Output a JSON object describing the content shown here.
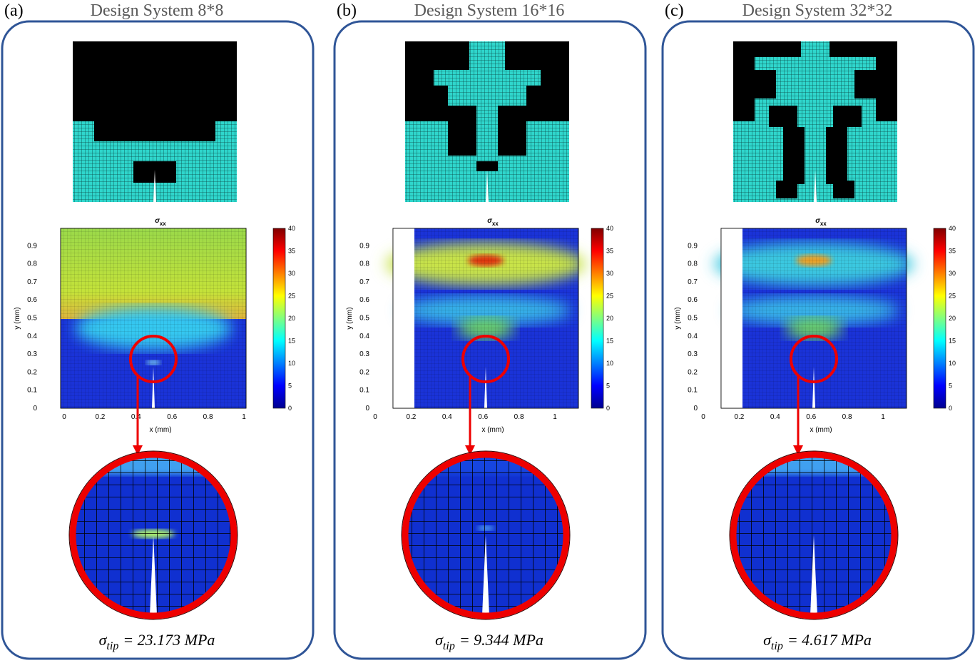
{
  "axes": {
    "plot_symbol": "σ",
    "plot_subscript": "xx",
    "x_label": "x (mm)",
    "y_label": "y (mm)",
    "x_ticks": [
      "0",
      "0.2",
      "0.4",
      "0.6",
      "0.8",
      "1"
    ],
    "y_ticks": [
      "0",
      "0.1",
      "0.2",
      "0.3",
      "0.4",
      "0.5",
      "0.6",
      "0.7",
      "0.8",
      "0.9"
    ],
    "colorbar_ticks": [
      "0",
      "5",
      "10",
      "15",
      "20",
      "25",
      "30",
      "35",
      "40"
    ]
  },
  "panels": [
    {
      "label": "(a)",
      "title": "Design System 8*8",
      "result": {
        "symbol": "σ",
        "subscript": "tip",
        "text": "= 23.173 MPa"
      }
    },
    {
      "label": "(b)",
      "title": "Design System 16*16",
      "result": {
        "symbol": "σ",
        "subscript": "tip",
        "text": "= 9.344 MPa"
      }
    },
    {
      "label": "(c)",
      "title": "Design System 32*32",
      "result": {
        "symbol": "σ",
        "subscript": "tip",
        "text": "= 4.617 MPa"
      }
    }
  ]
}
